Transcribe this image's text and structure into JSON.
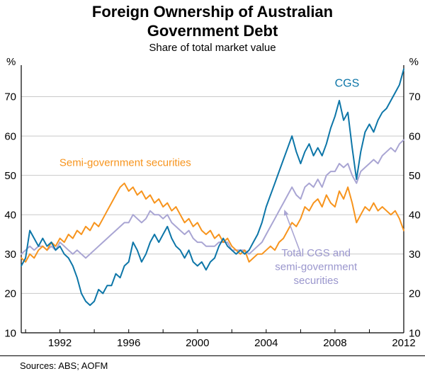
{
  "chart_data": {
    "type": "line",
    "title": "Foreign Ownership of Australian Government Debt",
    "subtitle": "Share of total market value",
    "unit_left": "%",
    "unit_right": "%",
    "x_start": 1989.75,
    "x_step": 0.25,
    "xlim": [
      1989.75,
      2012
    ],
    "ylim": [
      10,
      78
    ],
    "gridlines": [
      20,
      30,
      40,
      50,
      60,
      70
    ],
    "yticks": [
      10,
      20,
      30,
      40,
      50,
      60,
      70
    ],
    "xtick_minor_step": 2,
    "xtick_labels": [
      1992,
      1996,
      2000,
      2004,
      2008,
      2012
    ],
    "grid_color": "#c9c9c9",
    "axis_color": "#000000",
    "series": [
      {
        "id": "total",
        "name": "Total CGS and semi-government securities",
        "color": "#a9a5d3",
        "values": [
          30,
          31,
          32,
          31,
          32,
          32,
          31,
          32,
          31,
          33,
          32,
          31,
          30,
          31,
          30,
          29,
          30,
          31,
          32,
          33,
          34,
          35,
          36,
          37,
          38,
          38,
          40,
          39,
          38,
          39,
          41,
          40,
          40,
          39,
          40,
          38,
          37,
          36,
          35,
          36,
          34,
          33,
          33,
          32,
          32,
          32,
          33,
          33,
          33,
          31,
          31,
          31,
          31,
          30,
          31,
          32,
          33,
          35,
          37,
          39,
          41,
          43,
          45,
          47,
          45,
          44,
          47,
          48,
          47,
          49,
          47,
          50,
          51,
          51,
          53,
          52,
          53,
          50,
          48,
          51,
          52,
          53,
          54,
          53,
          55,
          56,
          57,
          56,
          58,
          59
        ]
      },
      {
        "id": "semi",
        "name": "Semi-government securities",
        "color": "#f7941d",
        "values": [
          29,
          28,
          30,
          29,
          31,
          32,
          31,
          33,
          32,
          34,
          33,
          35,
          34,
          36,
          35,
          37,
          36,
          38,
          37,
          39,
          41,
          43,
          45,
          47,
          48,
          46,
          47,
          45,
          46,
          44,
          45,
          43,
          44,
          42,
          43,
          41,
          42,
          40,
          38,
          39,
          37,
          38,
          36,
          35,
          36,
          34,
          35,
          33,
          34,
          32,
          31,
          30,
          31,
          28,
          29,
          30,
          30,
          31,
          32,
          31,
          33,
          34,
          36,
          38,
          37,
          39,
          42,
          41,
          43,
          44,
          42,
          45,
          43,
          42,
          46,
          44,
          47,
          43,
          38,
          40,
          42,
          41,
          43,
          41,
          42,
          41,
          40,
          41,
          39,
          36
        ]
      },
      {
        "id": "cgs",
        "name": "CGS",
        "color": "#0d76a8",
        "values": [
          27,
          29,
          36,
          34,
          32,
          34,
          32,
          33,
          31,
          32,
          30,
          29,
          27,
          24,
          20,
          18,
          17,
          18,
          21,
          20,
          22,
          22,
          25,
          24,
          27,
          28,
          33,
          31,
          28,
          30,
          33,
          35,
          33,
          35,
          37,
          34,
          32,
          31,
          29,
          31,
          28,
          27,
          28,
          26,
          28,
          29,
          32,
          34,
          32,
          31,
          30,
          31,
          30,
          31,
          33,
          35,
          38,
          42,
          45,
          48,
          51,
          54,
          57,
          60,
          56,
          53,
          56,
          58,
          55,
          57,
          55,
          58,
          62,
          65,
          69,
          64,
          66,
          57,
          49,
          56,
          61,
          63,
          61,
          64,
          66,
          67,
          69,
          71,
          73,
          77
        ]
      }
    ],
    "annotations": [
      {
        "id": "cgs",
        "lines": [
          "CGS"
        ],
        "x": 2008.7,
        "y": 72.5,
        "color": "#0d76a8",
        "size": 16
      },
      {
        "id": "semi",
        "lines": [
          "Semi-government securities"
        ],
        "x": 1995.8,
        "y": 52.4,
        "color": "#f7941d",
        "size": 15
      },
      {
        "id": "total",
        "lines": [
          "Total CGS and",
          "semi-government",
          "securities"
        ],
        "x": 2006.9,
        "y": 29.4,
        "color": "#9a96cd",
        "size": 15
      }
    ],
    "arrow": {
      "from": [
        2005.95,
        30.8
      ],
      "to": [
        2005.05,
        41.3
      ],
      "color": "#a9a5d3"
    }
  },
  "footer": {
    "sources": "Sources: ABS; AOFM"
  }
}
